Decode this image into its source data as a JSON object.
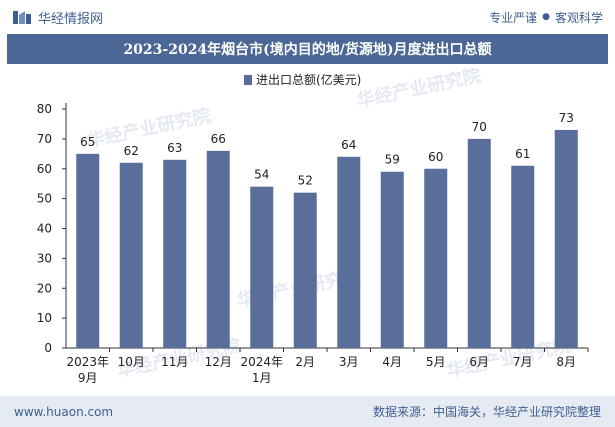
{
  "header": {
    "brand": "华经情报网",
    "tagline_left": "专业严谨",
    "tagline_sep": "●",
    "tagline_right": "客观科学"
  },
  "footer": {
    "site": "www.huaon.com",
    "source": "数据来源：中国海关，华经产业研究院整理"
  },
  "watermark": "华经产业研究院",
  "watermark_url": "www.huaon.com",
  "colors": {
    "bar": "#5a6e9b",
    "title_bg": "#4a6795",
    "footer_bg": "#e6ebf3",
    "brand": "#3d5f8f"
  },
  "chart_data": {
    "type": "bar",
    "title": "2023-2024年烟台市(境内目的地/货源地)月度进出口总额",
    "legend": "进出口总额(亿美元)",
    "legend_position": "top-center",
    "categories": [
      "2023年\n9月",
      "10月",
      "11月",
      "12月",
      "2024年\n1月",
      "2月",
      "3月",
      "4月",
      "5月",
      "6月",
      "7月",
      "8月"
    ],
    "values": [
      65,
      62,
      63,
      66,
      54,
      52,
      64,
      59,
      60,
      70,
      61,
      73
    ],
    "ylim": [
      0,
      80
    ],
    "yticks": [
      0,
      10,
      20,
      30,
      40,
      50,
      60,
      70,
      80
    ],
    "grid": false,
    "data_labels": true
  }
}
